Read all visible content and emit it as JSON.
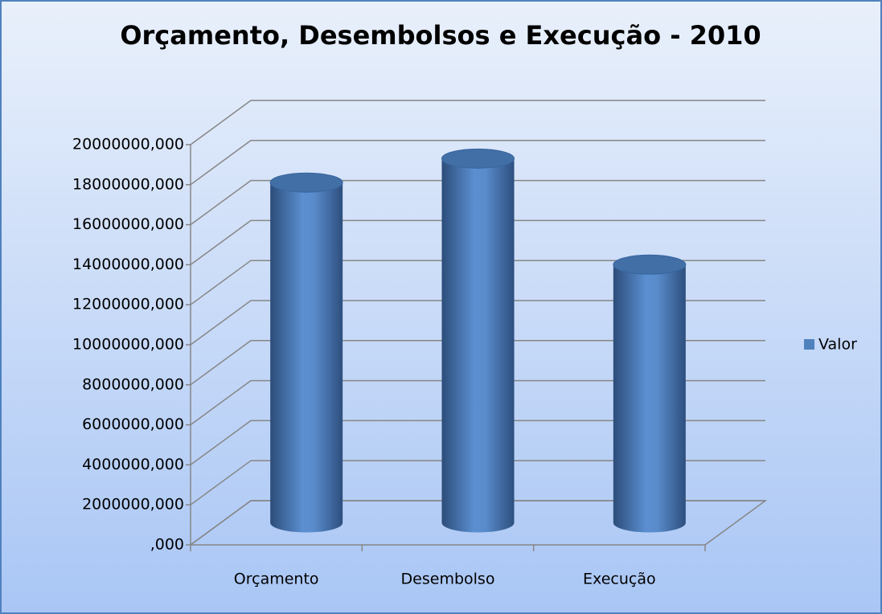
{
  "chart_data": {
    "type": "bar3d",
    "title": "Orçamento, Desembolsos e Execução - 2010",
    "categories": [
      "Orçamento",
      "Desembolso",
      "Execução"
    ],
    "series": [
      {
        "name": "Valor",
        "color": "#4f81bd",
        "values": [
          17000000,
          18200000,
          12900000
        ]
      }
    ],
    "ylim": [
      0,
      20000000
    ],
    "yticks": [
      {
        "value": 0,
        "label": ",000"
      },
      {
        "value": 2000000,
        "label": "2000000,000"
      },
      {
        "value": 4000000,
        "label": "4000000,000"
      },
      {
        "value": 6000000,
        "label": "6000000,000"
      },
      {
        "value": 8000000,
        "label": "8000000,000"
      },
      {
        "value": 10000000,
        "label": "10000000,000"
      },
      {
        "value": 12000000,
        "label": "12000000,000"
      },
      {
        "value": 14000000,
        "label": "14000000,000"
      },
      {
        "value": 16000000,
        "label": "16000000,000"
      },
      {
        "value": 18000000,
        "label": "18000000,000"
      },
      {
        "value": 20000000,
        "label": "20000000,000"
      }
    ],
    "grid": true,
    "legend": "right"
  }
}
